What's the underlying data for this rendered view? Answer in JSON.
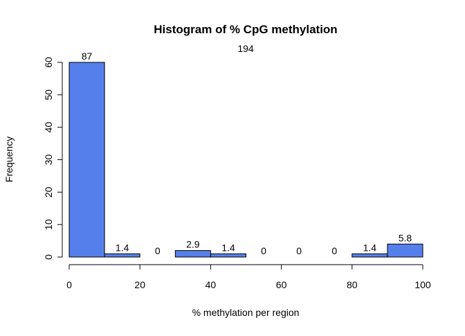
{
  "chart_data": {
    "type": "bar",
    "title": "Histogram of % CpG methylation",
    "subtitle": "194",
    "xlabel": "% methylation per region",
    "ylabel": "Frequency",
    "bins": [
      {
        "from": 0,
        "to": 10,
        "count": 60,
        "label": "87"
      },
      {
        "from": 10,
        "to": 20,
        "count": 1,
        "label": "1.4"
      },
      {
        "from": 20,
        "to": 30,
        "count": 0,
        "label": "0"
      },
      {
        "from": 30,
        "to": 40,
        "count": 2,
        "label": "2.9"
      },
      {
        "from": 40,
        "to": 50,
        "count": 1,
        "label": "1.4"
      },
      {
        "from": 50,
        "to": 60,
        "count": 0,
        "label": "0"
      },
      {
        "from": 60,
        "to": 70,
        "count": 0,
        "label": "0"
      },
      {
        "from": 70,
        "to": 80,
        "count": 0,
        "label": "0"
      },
      {
        "from": 80,
        "to": 90,
        "count": 1,
        "label": "1.4"
      },
      {
        "from": 90,
        "to": 100,
        "count": 4,
        "label": "5.8"
      }
    ],
    "xlim": [
      0,
      100
    ],
    "ylim": [
      0,
      60
    ],
    "xticks": [
      0,
      20,
      40,
      60,
      80,
      100
    ],
    "yticks": [
      0,
      10,
      20,
      30,
      40,
      50,
      60
    ],
    "bar_color": "#5580EC",
    "grid": false,
    "legend": "none"
  }
}
